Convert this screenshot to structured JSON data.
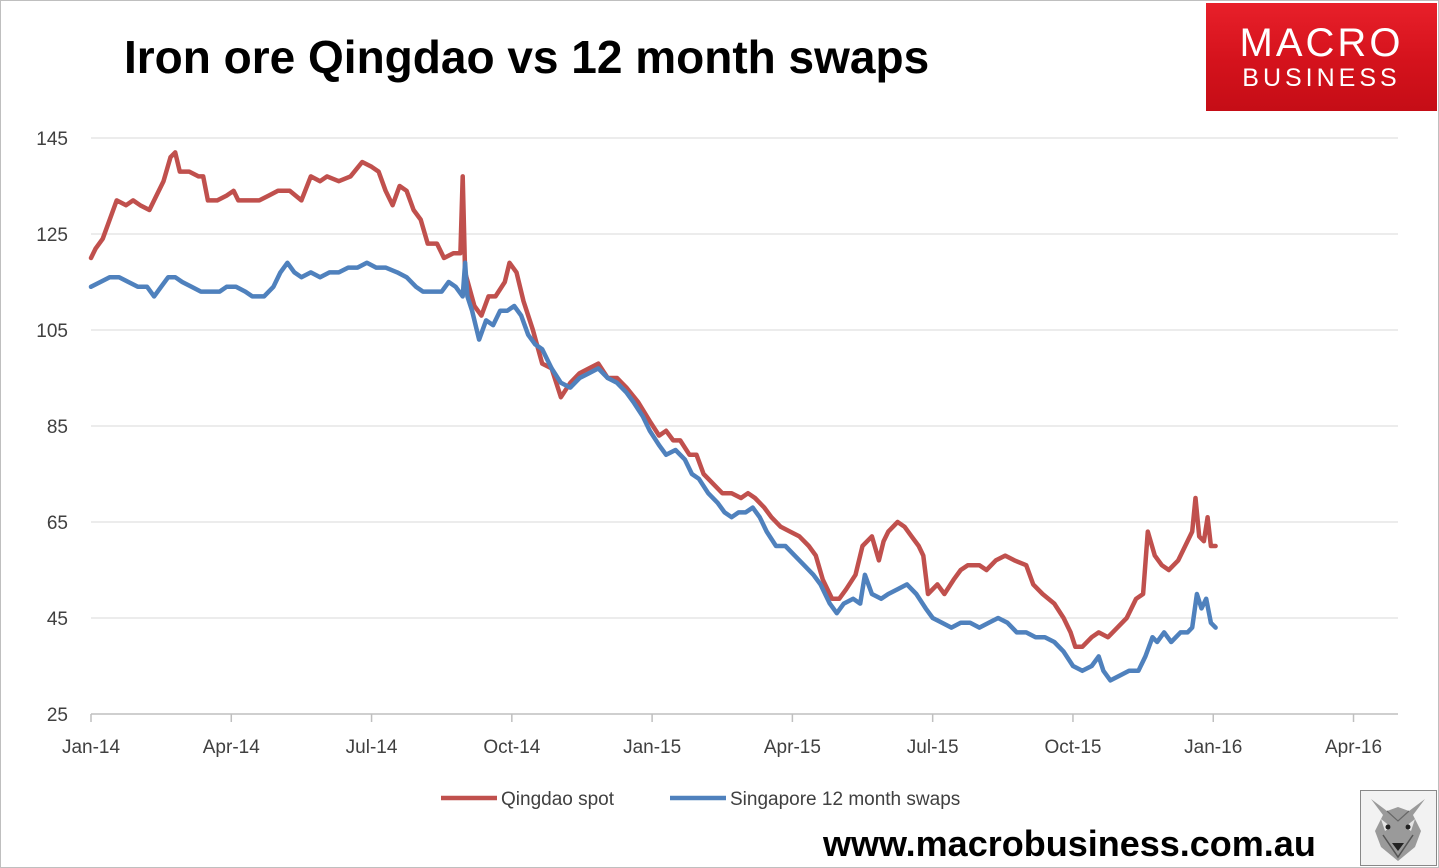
{
  "chart_data": {
    "type": "line",
    "title": "Iron ore Qingdao vs 12 month swaps",
    "xlabel": "",
    "ylabel": "",
    "ylim": [
      25,
      145
    ],
    "yticks": [
      25,
      45,
      65,
      85,
      105,
      125,
      145
    ],
    "xticks": [
      "Jan-14",
      "Apr-14",
      "Jul-14",
      "Oct-14",
      "Jan-15",
      "Apr-15",
      "Jul-15",
      "Oct-15",
      "Jan-16",
      "Apr-16"
    ],
    "grid": true,
    "legend": "bottom",
    "series": [
      {
        "name": "Qingdao spot",
        "color": "#c0504d",
        "points": [
          [
            0,
            120
          ],
          [
            0.1,
            122
          ],
          [
            0.25,
            124
          ],
          [
            0.4,
            128
          ],
          [
            0.55,
            132
          ],
          [
            0.75,
            131
          ],
          [
            0.9,
            132
          ],
          [
            1.05,
            131
          ],
          [
            1.25,
            130
          ],
          [
            1.35,
            132
          ],
          [
            1.55,
            136
          ],
          [
            1.7,
            141
          ],
          [
            1.8,
            142
          ],
          [
            1.9,
            138
          ],
          [
            2.1,
            138
          ],
          [
            2.3,
            137
          ],
          [
            2.4,
            137
          ],
          [
            2.5,
            132
          ],
          [
            2.7,
            132
          ],
          [
            2.9,
            133
          ],
          [
            3.05,
            134
          ],
          [
            3.15,
            132
          ],
          [
            3.35,
            132
          ],
          [
            3.6,
            132
          ],
          [
            3.8,
            133
          ],
          [
            4.0,
            134
          ],
          [
            4.25,
            134
          ],
          [
            4.5,
            132
          ],
          [
            4.7,
            137
          ],
          [
            4.9,
            136
          ],
          [
            5.05,
            137
          ],
          [
            5.3,
            136
          ],
          [
            5.55,
            137
          ],
          [
            5.8,
            140
          ],
          [
            6.0,
            139
          ],
          [
            6.15,
            138
          ],
          [
            6.3,
            134
          ],
          [
            6.45,
            131
          ],
          [
            6.6,
            135
          ],
          [
            6.75,
            134
          ],
          [
            6.9,
            130
          ],
          [
            7.05,
            128
          ],
          [
            7.2,
            123
          ],
          [
            7.4,
            123
          ],
          [
            7.55,
            120
          ],
          [
            7.75,
            121
          ],
          [
            7.9,
            121
          ],
          [
            7.95,
            137
          ],
          [
            8.0,
            117
          ],
          [
            8.2,
            110
          ],
          [
            8.35,
            108
          ],
          [
            8.5,
            112
          ],
          [
            8.65,
            112
          ],
          [
            8.85,
            115
          ],
          [
            8.95,
            119
          ],
          [
            9.1,
            117
          ],
          [
            9.25,
            111
          ],
          [
            9.45,
            105
          ],
          [
            9.65,
            98
          ],
          [
            9.85,
            97
          ],
          [
            10.05,
            91
          ],
          [
            10.25,
            94
          ],
          [
            10.45,
            96
          ],
          [
            10.65,
            97
          ],
          [
            10.85,
            98
          ],
          [
            11.05,
            95
          ],
          [
            11.25,
            95
          ],
          [
            11.45,
            93
          ],
          [
            11.7,
            90
          ],
          [
            11.95,
            86
          ],
          [
            12.15,
            83
          ],
          [
            12.3,
            84
          ],
          [
            12.45,
            82
          ],
          [
            12.6,
            82
          ],
          [
            12.8,
            79
          ],
          [
            12.95,
            79
          ],
          [
            13.1,
            75
          ],
          [
            13.3,
            73
          ],
          [
            13.5,
            71
          ],
          [
            13.7,
            71
          ],
          [
            13.9,
            70
          ],
          [
            14.05,
            71
          ],
          [
            14.2,
            70
          ],
          [
            14.4,
            68
          ],
          [
            14.55,
            66
          ],
          [
            14.75,
            64
          ],
          [
            14.95,
            63
          ],
          [
            15.15,
            62
          ],
          [
            15.35,
            60
          ],
          [
            15.5,
            58
          ],
          [
            15.65,
            53
          ],
          [
            15.85,
            49
          ],
          [
            16.0,
            49
          ],
          [
            16.15,
            51
          ],
          [
            16.35,
            54
          ],
          [
            16.5,
            60
          ],
          [
            16.7,
            62
          ],
          [
            16.85,
            57
          ],
          [
            16.95,
            61
          ],
          [
            17.05,
            63
          ],
          [
            17.25,
            65
          ],
          [
            17.4,
            64
          ],
          [
            17.55,
            62
          ],
          [
            17.7,
            60
          ],
          [
            17.8,
            58
          ],
          [
            17.9,
            50
          ],
          [
            18.1,
            52
          ],
          [
            18.25,
            50
          ],
          [
            18.45,
            53
          ],
          [
            18.6,
            55
          ],
          [
            18.75,
            56
          ],
          [
            19.0,
            56
          ],
          [
            19.15,
            55
          ],
          [
            19.35,
            57
          ],
          [
            19.55,
            58
          ],
          [
            19.75,
            57
          ],
          [
            20.0,
            56
          ],
          [
            20.15,
            52
          ],
          [
            20.35,
            50
          ],
          [
            20.6,
            48
          ],
          [
            20.8,
            45
          ],
          [
            20.95,
            42
          ],
          [
            21.05,
            39
          ],
          [
            21.2,
            39
          ],
          [
            21.4,
            41
          ],
          [
            21.55,
            42
          ],
          [
            21.75,
            41
          ],
          [
            21.95,
            43
          ],
          [
            22.15,
            45
          ],
          [
            22.35,
            49
          ],
          [
            22.5,
            50
          ],
          [
            22.6,
            63
          ],
          [
            22.75,
            58
          ],
          [
            22.9,
            56
          ],
          [
            23.05,
            55
          ],
          [
            23.25,
            57
          ],
          [
            23.4,
            60
          ],
          [
            23.55,
            63
          ],
          [
            23.62,
            70
          ],
          [
            23.7,
            62
          ],
          [
            23.8,
            61
          ],
          [
            23.88,
            66
          ],
          [
            23.95,
            60
          ],
          [
            24.05,
            60
          ]
        ]
      },
      {
        "name": "Singapore 12 month swaps",
        "color": "#4f81bd",
        "points": [
          [
            0,
            114
          ],
          [
            0.2,
            115
          ],
          [
            0.4,
            116
          ],
          [
            0.6,
            116
          ],
          [
            0.8,
            115
          ],
          [
            1.0,
            114
          ],
          [
            1.2,
            114
          ],
          [
            1.35,
            112
          ],
          [
            1.5,
            114
          ],
          [
            1.65,
            116
          ],
          [
            1.8,
            116
          ],
          [
            1.95,
            115
          ],
          [
            2.15,
            114
          ],
          [
            2.35,
            113
          ],
          [
            2.55,
            113
          ],
          [
            2.75,
            113
          ],
          [
            2.9,
            114
          ],
          [
            3.1,
            114
          ],
          [
            3.3,
            113
          ],
          [
            3.45,
            112
          ],
          [
            3.7,
            112
          ],
          [
            3.9,
            114
          ],
          [
            4.05,
            117
          ],
          [
            4.2,
            119
          ],
          [
            4.35,
            117
          ],
          [
            4.5,
            116
          ],
          [
            4.7,
            117
          ],
          [
            4.9,
            116
          ],
          [
            5.1,
            117
          ],
          [
            5.3,
            117
          ],
          [
            5.5,
            118
          ],
          [
            5.7,
            118
          ],
          [
            5.9,
            119
          ],
          [
            6.1,
            118
          ],
          [
            6.3,
            118
          ],
          [
            6.55,
            117
          ],
          [
            6.75,
            116
          ],
          [
            6.95,
            114
          ],
          [
            7.1,
            113
          ],
          [
            7.3,
            113
          ],
          [
            7.5,
            113
          ],
          [
            7.65,
            115
          ],
          [
            7.8,
            114
          ],
          [
            7.95,
            112
          ],
          [
            8.0,
            119
          ],
          [
            8.05,
            112
          ],
          [
            8.15,
            109
          ],
          [
            8.3,
            103
          ],
          [
            8.45,
            107
          ],
          [
            8.6,
            106
          ],
          [
            8.75,
            109
          ],
          [
            8.9,
            109
          ],
          [
            9.05,
            110
          ],
          [
            9.2,
            108
          ],
          [
            9.35,
            104
          ],
          [
            9.5,
            102
          ],
          [
            9.65,
            101
          ],
          [
            9.85,
            97
          ],
          [
            10.05,
            94
          ],
          [
            10.25,
            93
          ],
          [
            10.45,
            95
          ],
          [
            10.65,
            96
          ],
          [
            10.85,
            97
          ],
          [
            11.05,
            95
          ],
          [
            11.25,
            94
          ],
          [
            11.45,
            92
          ],
          [
            11.6,
            90
          ],
          [
            11.8,
            87
          ],
          [
            11.95,
            84
          ],
          [
            12.15,
            81
          ],
          [
            12.3,
            79
          ],
          [
            12.5,
            80
          ],
          [
            12.7,
            78
          ],
          [
            12.85,
            75
          ],
          [
            13.0,
            74
          ],
          [
            13.2,
            71
          ],
          [
            13.4,
            69
          ],
          [
            13.55,
            67
          ],
          [
            13.7,
            66
          ],
          [
            13.85,
            67
          ],
          [
            14.0,
            67
          ],
          [
            14.15,
            68
          ],
          [
            14.3,
            66
          ],
          [
            14.45,
            63
          ],
          [
            14.65,
            60
          ],
          [
            14.85,
            60
          ],
          [
            15.05,
            58
          ],
          [
            15.25,
            56
          ],
          [
            15.45,
            54
          ],
          [
            15.6,
            52
          ],
          [
            15.8,
            48
          ],
          [
            15.95,
            46
          ],
          [
            16.1,
            48
          ],
          [
            16.3,
            49
          ],
          [
            16.45,
            48
          ],
          [
            16.55,
            54
          ],
          [
            16.7,
            50
          ],
          [
            16.9,
            49
          ],
          [
            17.05,
            50
          ],
          [
            17.25,
            51
          ],
          [
            17.45,
            52
          ],
          [
            17.65,
            50
          ],
          [
            17.85,
            47
          ],
          [
            18.0,
            45
          ],
          [
            18.2,
            44
          ],
          [
            18.4,
            43
          ],
          [
            18.6,
            44
          ],
          [
            18.8,
            44
          ],
          [
            19.0,
            43
          ],
          [
            19.2,
            44
          ],
          [
            19.4,
            45
          ],
          [
            19.6,
            44
          ],
          [
            19.8,
            42
          ],
          [
            20.0,
            42
          ],
          [
            20.2,
            41
          ],
          [
            20.4,
            41
          ],
          [
            20.6,
            40
          ],
          [
            20.8,
            38
          ],
          [
            21.0,
            35
          ],
          [
            21.2,
            34
          ],
          [
            21.4,
            35
          ],
          [
            21.55,
            37
          ],
          [
            21.65,
            34
          ],
          [
            21.8,
            32
          ],
          [
            22.0,
            33
          ],
          [
            22.2,
            34
          ],
          [
            22.4,
            34
          ],
          [
            22.55,
            37
          ],
          [
            22.7,
            41
          ],
          [
            22.8,
            40
          ],
          [
            22.95,
            42
          ],
          [
            23.1,
            40
          ],
          [
            23.3,
            42
          ],
          [
            23.45,
            42
          ],
          [
            23.55,
            43
          ],
          [
            23.65,
            50
          ],
          [
            23.75,
            47
          ],
          [
            23.85,
            49
          ],
          [
            23.95,
            44
          ],
          [
            24.05,
            43
          ]
        ]
      }
    ]
  },
  "logo": {
    "line1": "MACRO",
    "line2": "BUSINESS"
  },
  "footer": {
    "url": "www.macrobusiness.com.au"
  },
  "colors": {
    "qingdao": "#c0504d",
    "singapore": "#4f81bd",
    "logo_red": "#e01b24"
  },
  "icons": {
    "wolf": "wolf-head-icon"
  }
}
